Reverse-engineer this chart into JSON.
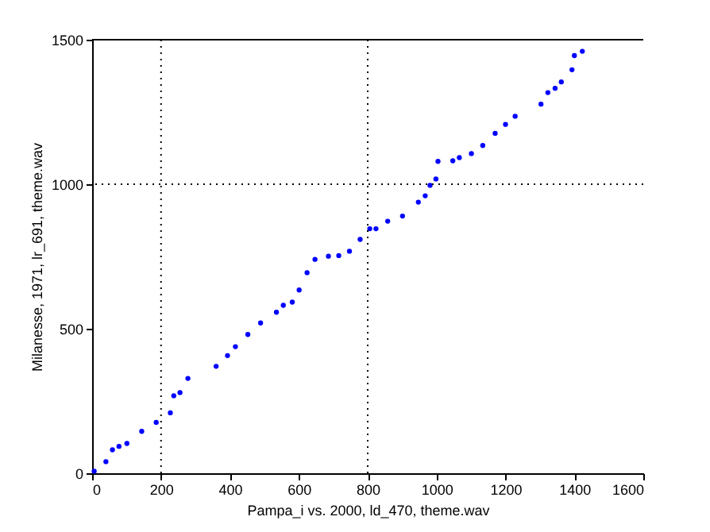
{
  "chart_data": {
    "type": "scatter",
    "xlabel": "Pampa_i vs. 2000, ld_470, theme.wav",
    "ylabel": "Milanesse, 1971, lr_691, theme.wav",
    "x": [
      6,
      40,
      59,
      78,
      101,
      144,
      186,
      227,
      237,
      255,
      278,
      360,
      393,
      416,
      452,
      489,
      535,
      555,
      581,
      601,
      624,
      647,
      686,
      716,
      747,
      778,
      806,
      824,
      858,
      901,
      947,
      967,
      981,
      998,
      1004,
      1047,
      1066,
      1101,
      1134,
      1170,
      1200,
      1228,
      1303,
      1323,
      1344,
      1362,
      1393,
      1400,
      1423
    ],
    "series": [
      {
        "color": "#0000ff",
        "values": [
          7,
          40,
          81,
          93,
          103,
          145,
          176,
          209,
          268,
          279,
          328,
          370,
          407,
          438,
          480,
          520,
          557,
          581,
          592,
          634,
          694,
          740,
          751,
          753,
          768,
          809,
          846,
          846,
          872,
          890,
          938,
          960,
          996,
          1018,
          1079,
          1081,
          1092,
          1106,
          1134,
          1176,
          1207,
          1235,
          1277,
          1317,
          1332,
          1354,
          1396,
          1445,
          1460
        ]
      }
    ],
    "xlim": [
      0,
      1600
    ],
    "xticks": [
      0,
      200,
      400,
      600,
      800,
      1000,
      1200,
      1400,
      1600
    ],
    "ylim": [
      0,
      1500
    ],
    "yticks": [
      0,
      500,
      1000,
      1500
    ],
    "ref_lines": [
      {
        "axis": "x",
        "value": 200,
        "color": "#000000",
        "line_style": "dotted"
      },
      {
        "axis": "x",
        "value": 800,
        "color": "#000000",
        "line_style": "dotted"
      },
      {
        "axis": "y",
        "value": 1000,
        "color": "#000000",
        "line_style": "dotted"
      }
    ],
    "marker": "circle",
    "grid": false
  }
}
